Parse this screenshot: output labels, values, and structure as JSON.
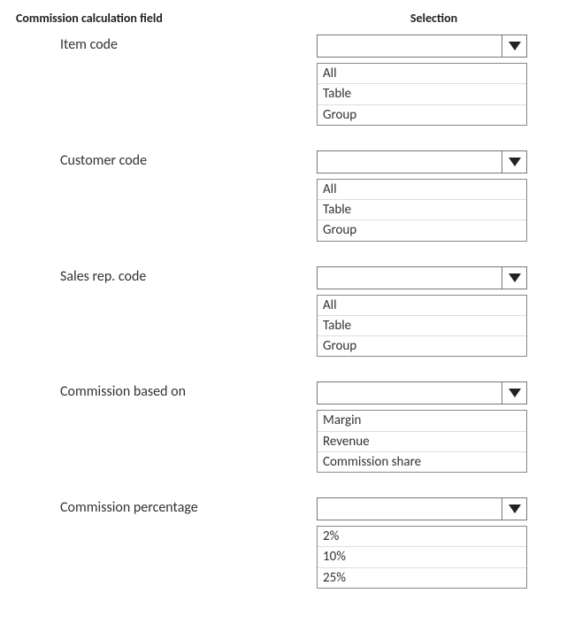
{
  "headers": {
    "left": "Commission calculation field",
    "right": "Selection"
  },
  "fields": [
    {
      "label": "Item code",
      "selected": "",
      "options": [
        "All",
        "Table",
        "Group"
      ]
    },
    {
      "label": "Customer code",
      "selected": "",
      "options": [
        "All",
        "Table",
        "Group"
      ]
    },
    {
      "label": "Sales rep. code",
      "selected": "",
      "options": [
        "All",
        "Table",
        "Group"
      ]
    },
    {
      "label": "Commission based on",
      "selected": "",
      "options": [
        "Margin",
        "Revenue",
        "Commission share"
      ]
    },
    {
      "label": "Commission percentage",
      "selected": "",
      "options": [
        "2%",
        "10%",
        "25%"
      ]
    }
  ],
  "style": {
    "border_color": "#777777",
    "option_divider_color": "#dddddd",
    "arrow_color": "#222222",
    "text_color": "#333333",
    "background_color": "#ffffff",
    "font_family": "Calibri",
    "header_fontsize": 14,
    "label_fontsize": 16,
    "option_fontsize": 15,
    "dropdown_width": 238,
    "dropdown_height": 26,
    "arrow_box_width": 28
  }
}
